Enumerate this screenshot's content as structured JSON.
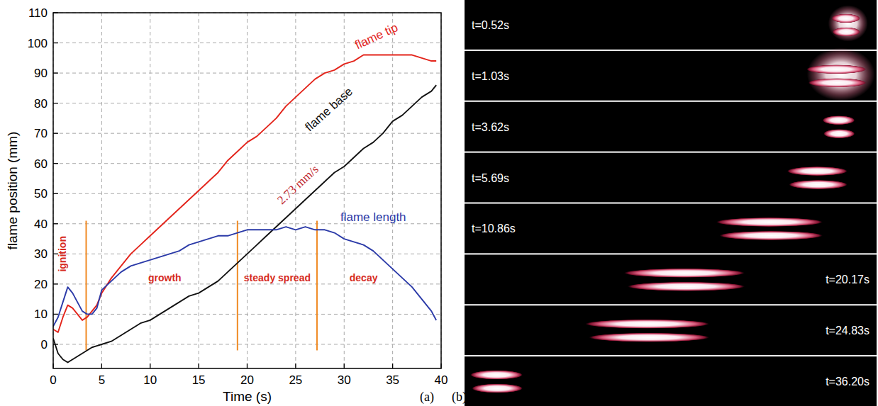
{
  "chart_data": {
    "type": "line",
    "xlabel": "Time (s)",
    "ylabel": "flame position (mm)",
    "x": [
      0,
      0.5,
      1,
      1.5,
      2,
      3,
      3.5,
      4,
      4.5,
      5,
      6,
      7,
      8,
      9,
      10,
      11,
      12,
      13,
      14,
      15,
      16,
      17,
      18,
      19,
      20,
      21,
      22,
      23,
      24,
      25,
      26,
      27,
      28,
      29,
      30,
      31,
      32,
      33,
      34,
      35,
      36,
      37,
      38,
      39,
      39.5
    ],
    "xlim": [
      0,
      40
    ],
    "xticks": [
      0,
      5,
      10,
      15,
      20,
      25,
      30,
      35,
      40
    ],
    "ylim": [
      -8,
      110
    ],
    "yticks": [
      0,
      10,
      20,
      30,
      40,
      50,
      60,
      70,
      80,
      90,
      100,
      110
    ],
    "grid": true,
    "series": [
      {
        "name": "flame tip",
        "color": "#e3241b",
        "label_x": 33.5,
        "label_y": 101,
        "values": [
          5,
          4,
          9,
          13,
          12,
          8,
          9,
          11,
          13,
          17,
          22,
          26,
          30,
          33,
          36,
          39,
          42,
          45,
          48,
          51,
          54,
          57,
          61,
          64,
          67,
          69,
          72,
          75,
          79,
          82,
          85,
          88,
          90,
          91,
          93,
          94,
          96,
          96,
          96,
          96,
          96,
          96,
          95,
          94,
          94
        ]
      },
      {
        "name": "flame base",
        "color": "#111111",
        "label_x": 28.7,
        "label_y": 77,
        "values": [
          2,
          -3,
          -5,
          -6,
          -5,
          -3,
          -2,
          -1,
          -0.5,
          0,
          1,
          3,
          5,
          7,
          8,
          10,
          12,
          14,
          16,
          17,
          19,
          21,
          24,
          27,
          30,
          33,
          36,
          39,
          42,
          45,
          48,
          51,
          54,
          57,
          59,
          62,
          65,
          67,
          70,
          74,
          76,
          79,
          82,
          84,
          86
        ]
      },
      {
        "name": "flame length",
        "color": "#2b3aa8",
        "label_x": 33,
        "label_y": 41,
        "values": [
          6,
          9,
          14,
          19,
          17,
          11,
          10,
          10,
          12,
          18,
          21,
          24,
          26,
          27,
          28,
          29,
          30,
          31,
          33,
          34,
          35,
          36,
          36,
          37,
          38,
          38,
          38,
          38,
          39,
          38,
          39,
          38,
          38,
          37,
          35,
          34,
          33,
          31,
          28,
          25,
          22,
          19,
          15,
          11,
          8
        ]
      }
    ],
    "phase_boundaries": [
      3.4,
      19,
      27.2
    ],
    "phase_boundary_span": [
      -2,
      41
    ],
    "annotations": [
      {
        "text": "ignition",
        "x": 1.3,
        "y": 30,
        "color": "#d62a1e"
      },
      {
        "text": "growth",
        "x": 11.5,
        "y": 21,
        "color": "#d62a1e"
      },
      {
        "text": "steady spread",
        "x": 23.1,
        "y": 21,
        "color": "#d62a1e"
      },
      {
        "text": "decay",
        "x": 32,
        "y": 21,
        "color": "#d62a1e"
      },
      {
        "text": "2.73 mm/s",
        "x": 25.5,
        "y": 52,
        "color": "#c0272d"
      }
    ],
    "panel_label": "(a)"
  },
  "panel_b": {
    "panel_label": "(b)",
    "frames": [
      {
        "label": "t=0.52s"
      },
      {
        "label": "t=1.03s"
      },
      {
        "label": "t=3.62s"
      },
      {
        "label": "t=5.69s"
      },
      {
        "label": "t=10.86s"
      },
      {
        "label": "t=20.17s"
      },
      {
        "label": "t=24.83s"
      },
      {
        "label": "t=36.20s"
      }
    ]
  }
}
